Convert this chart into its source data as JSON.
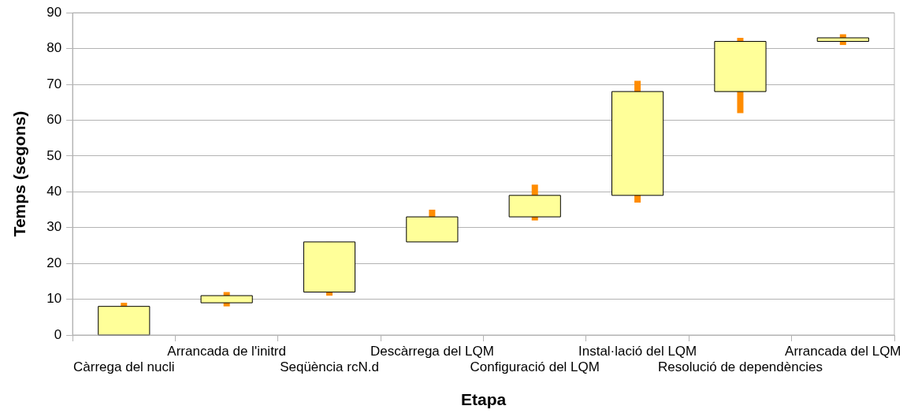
{
  "chart_data": {
    "type": "candlestick",
    "xlabel": "Etapa",
    "ylabel": "Temps (segons)",
    "categories": [
      "Càrrega del nucli",
      "Arrancada de l'initrd",
      "Seqüència rcN.d",
      "Descàrrega del LQM",
      "Configuració del LQM",
      "Instal·lació del LQM",
      "Resolució de dependències",
      "Arrancada del LQM"
    ],
    "ohlc": [
      [
        0,
        9,
        0,
        8
      ],
      [
        9,
        12,
        8,
        11
      ],
      [
        12,
        26,
        11,
        26
      ],
      [
        26,
        35,
        26,
        33
      ],
      [
        33,
        42,
        32,
        39
      ],
      [
        39,
        71,
        37,
        68
      ],
      [
        68,
        83,
        62,
        82
      ],
      [
        82,
        84,
        81,
        83
      ]
    ],
    "color": "#ffff99",
    "ylim": [
      0,
      90
    ],
    "yticks": [
      0,
      10,
      20,
      30,
      40,
      50,
      60,
      70,
      80,
      90
    ],
    "grid": "y",
    "legend": false
  }
}
